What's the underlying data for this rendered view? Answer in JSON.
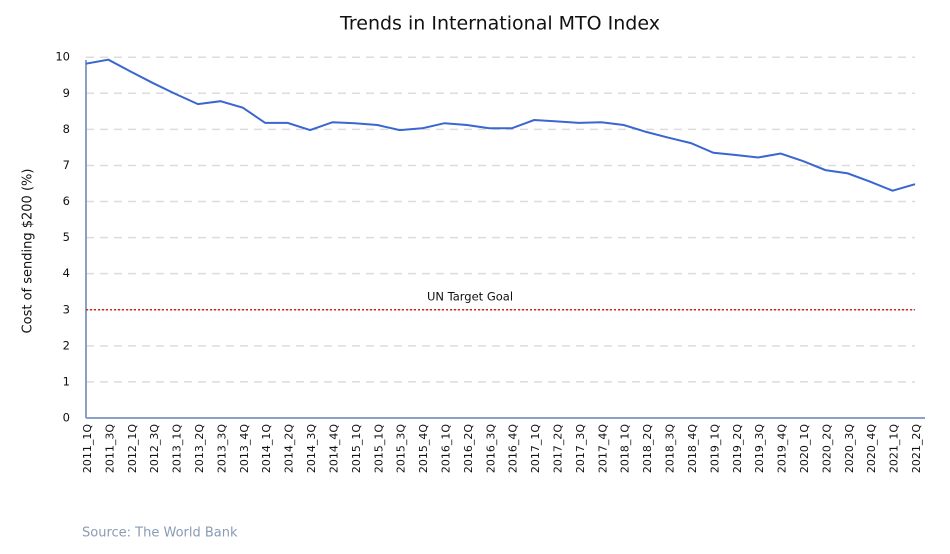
{
  "chart_data": {
    "type": "line",
    "title": "Trends in International MTO Index",
    "y_label": "Cost of sending $200 (%)",
    "source": "Source: The World Bank",
    "categories": [
      "2011_1Q",
      "2011_3Q",
      "2012_1Q",
      "2012_3Q",
      "2013_1Q",
      "2013_2Q",
      "2013_3Q",
      "2013_4Q",
      "2014_1Q",
      "2014_2Q",
      "2014_3Q",
      "2014_4Q",
      "2015_1Q",
      "2015_1Q",
      "2015_3Q",
      "2015_4Q",
      "2016_1Q",
      "2016_2Q",
      "2016_3Q",
      "2016_4Q",
      "2017_1Q",
      "2017_2Q",
      "2017_3Q",
      "2017_4Q",
      "2018_1Q",
      "2018_2Q",
      "2018_3Q",
      "2018_4Q",
      "2019_1Q",
      "2019_2Q",
      "2019_3Q",
      "2019_4Q",
      "2020_1Q",
      "2020_2Q",
      "2020_3Q",
      "2020_4Q",
      "2021_1Q",
      "2021_2Q"
    ],
    "values": [
      9.82,
      9.93,
      9.6,
      9.28,
      8.98,
      8.7,
      8.78,
      8.6,
      8.18,
      8.18,
      7.98,
      8.2,
      8.17,
      8.12,
      7.98,
      8.03,
      8.17,
      8.12,
      8.03,
      8.03,
      8.26,
      8.22,
      8.18,
      8.2,
      8.12,
      7.93,
      7.77,
      7.62,
      7.35,
      7.29,
      7.22,
      7.33,
      7.12,
      6.87,
      6.78,
      6.55,
      6.3,
      6.48
    ],
    "color": "#3a66d0",
    "ylim": [
      0,
      10.2
    ],
    "yticks": [
      0,
      1,
      2,
      3,
      4,
      5,
      6,
      7,
      8,
      9,
      10
    ],
    "grid": true,
    "target": {
      "label": "UN Target Goal",
      "value": 3,
      "color": "#e02020"
    }
  }
}
